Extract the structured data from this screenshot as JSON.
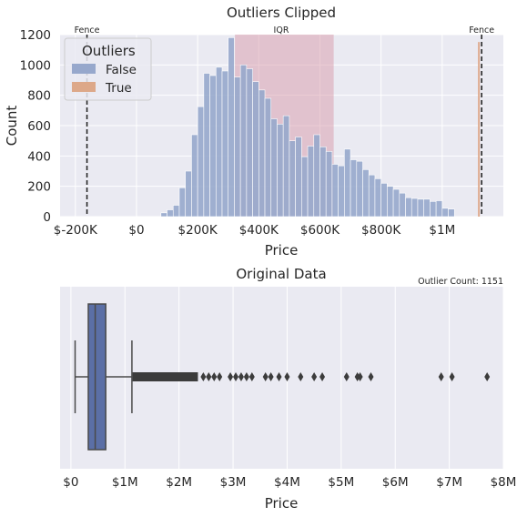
{
  "colors": {
    "axes_bg": "#eaeaf2",
    "grid": "#ffffff",
    "false_fill": "#97a8cc",
    "true_fill": "#dda889",
    "iqr_fill": "#d79aa9",
    "box_fill": "#5b6fa6",
    "whisker": "#4a4a4a",
    "fence_line": "#262626"
  },
  "chart_data": [
    {
      "type": "histogram",
      "title": "Outliers Clipped",
      "xlabel": "Price",
      "ylabel": "Count",
      "xlim": [
        -250000,
        1200000
      ],
      "ylim": [
        0,
        1200
      ],
      "x_ticks": [
        {
          "value": -200000,
          "label": "$-200K"
        },
        {
          "value": 0,
          "label": "$0"
        },
        {
          "value": 200000,
          "label": "$200K"
        },
        {
          "value": 400000,
          "label": "$400K"
        },
        {
          "value": 600000,
          "label": "$600K"
        },
        {
          "value": 800000,
          "label": "$800K"
        },
        {
          "value": 1000000,
          "label": "$1M"
        }
      ],
      "y_ticks": [
        0,
        200,
        400,
        600,
        800,
        1000,
        1200
      ],
      "bin_start": 80000,
      "bin_width": 20000,
      "series": [
        {
          "name": "False",
          "color_key": "false_fill",
          "values": [
            25,
            45,
            75,
            190,
            300,
            540,
            725,
            945,
            930,
            985,
            960,
            1180,
            920,
            1000,
            975,
            890,
            835,
            780,
            645,
            610,
            665,
            500,
            525,
            395,
            465,
            540,
            460,
            430,
            345,
            335,
            445,
            375,
            365,
            310,
            275,
            250,
            220,
            200,
            180,
            155,
            125,
            120,
            115,
            115,
            100,
            105,
            55,
            50
          ]
        },
        {
          "name": "True",
          "color_key": "true_fill",
          "bins": [
            {
              "x": 1120000,
              "value": 1151
            }
          ]
        }
      ],
      "iqr": {
        "label": "IQR",
        "x0": 322000,
        "x1": 645000
      },
      "fences": [
        {
          "label": "Fence",
          "x": -162000
        },
        {
          "label": "Fence",
          "x": 1129000
        }
      ],
      "legend": {
        "title": "Outliers",
        "placement": "top-left",
        "entries": [
          "False",
          "True"
        ]
      }
    },
    {
      "type": "box",
      "title": "Original Data",
      "xlabel": "Price",
      "annotation": "Outlier Count: 1151",
      "xlim": [
        -200000,
        8000000
      ],
      "x_ticks": [
        {
          "value": 0,
          "label": "$0"
        },
        {
          "value": 1000000,
          "label": "$1M"
        },
        {
          "value": 2000000,
          "label": "$2M"
        },
        {
          "value": 3000000,
          "label": "$3M"
        },
        {
          "value": 4000000,
          "label": "$4M"
        },
        {
          "value": 5000000,
          "label": "$5M"
        },
        {
          "value": 6000000,
          "label": "$6M"
        },
        {
          "value": 7000000,
          "label": "$7M"
        },
        {
          "value": 8000000,
          "label": "$8M"
        }
      ],
      "stats": {
        "whisker_low": 78000,
        "q1": 322000,
        "median": 450000,
        "q3": 645000,
        "whisker_high": 1129000
      },
      "outlier_range": [
        1140000,
        2350000
      ],
      "outliers": [
        2450000,
        2550000,
        2650000,
        2750000,
        2950000,
        3050000,
        3150000,
        3250000,
        3350000,
        3600000,
        3700000,
        3850000,
        4000000,
        4250000,
        4500000,
        4650000,
        5100000,
        5300000,
        5350000,
        5550000,
        6850000,
        7050000,
        7700000
      ]
    }
  ]
}
